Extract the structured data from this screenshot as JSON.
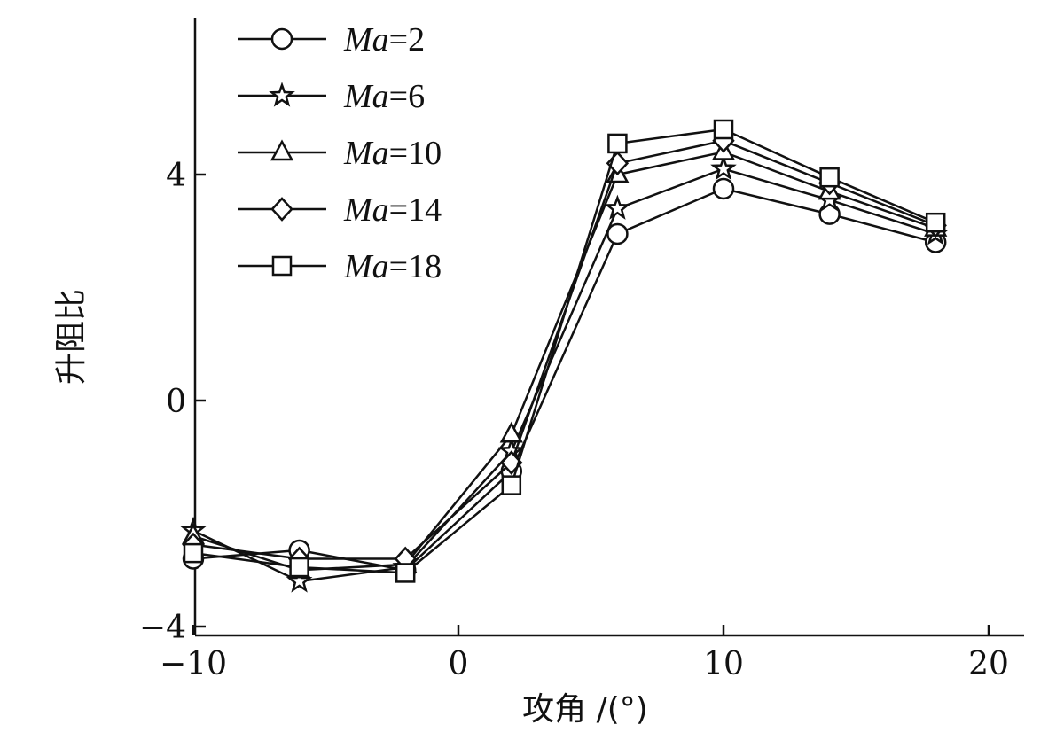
{
  "chart_data": {
    "type": "line",
    "title": "",
    "xlabel": "攻角 /(°)",
    "ylabel": "升阻比",
    "xlim": [
      -10,
      21
    ],
    "ylim": [
      -4,
      7
    ],
    "xticks": [
      -10,
      0,
      10,
      20
    ],
    "xtick_labels": [
      "−10",
      "0",
      "10",
      "20"
    ],
    "yticks": [
      -4,
      0,
      4
    ],
    "ytick_labels": [
      "−4",
      "0",
      "4"
    ],
    "x": [
      -10,
      -6,
      -2,
      2,
      6,
      10,
      14,
      18
    ],
    "legend_position": "top-left",
    "series": [
      {
        "name": "Ma=2",
        "mach": "2",
        "marker": "circle",
        "values": [
          -2.8,
          -2.65,
          -3.0,
          -1.25,
          2.95,
          3.75,
          3.3,
          2.8
        ]
      },
      {
        "name": "Ma=6",
        "mach": "6",
        "marker": "star",
        "values": [
          -2.3,
          -3.2,
          -2.95,
          -0.9,
          3.4,
          4.1,
          3.55,
          2.95
        ]
      },
      {
        "name": "Ma=10",
        "mach": "10",
        "marker": "triangle",
        "values": [
          -2.4,
          -3.0,
          -2.9,
          -0.6,
          4.0,
          4.4,
          3.7,
          3.05
        ]
      },
      {
        "name": "Ma=14",
        "mach": "14",
        "marker": "diamond",
        "values": [
          -2.55,
          -2.8,
          -2.8,
          -1.1,
          4.2,
          4.6,
          3.85,
          3.1
        ]
      },
      {
        "name": "Ma=18",
        "mach": "18",
        "marker": "square",
        "values": [
          -2.7,
          -2.95,
          -3.05,
          -1.5,
          4.55,
          4.8,
          3.95,
          3.15
        ]
      }
    ]
  }
}
